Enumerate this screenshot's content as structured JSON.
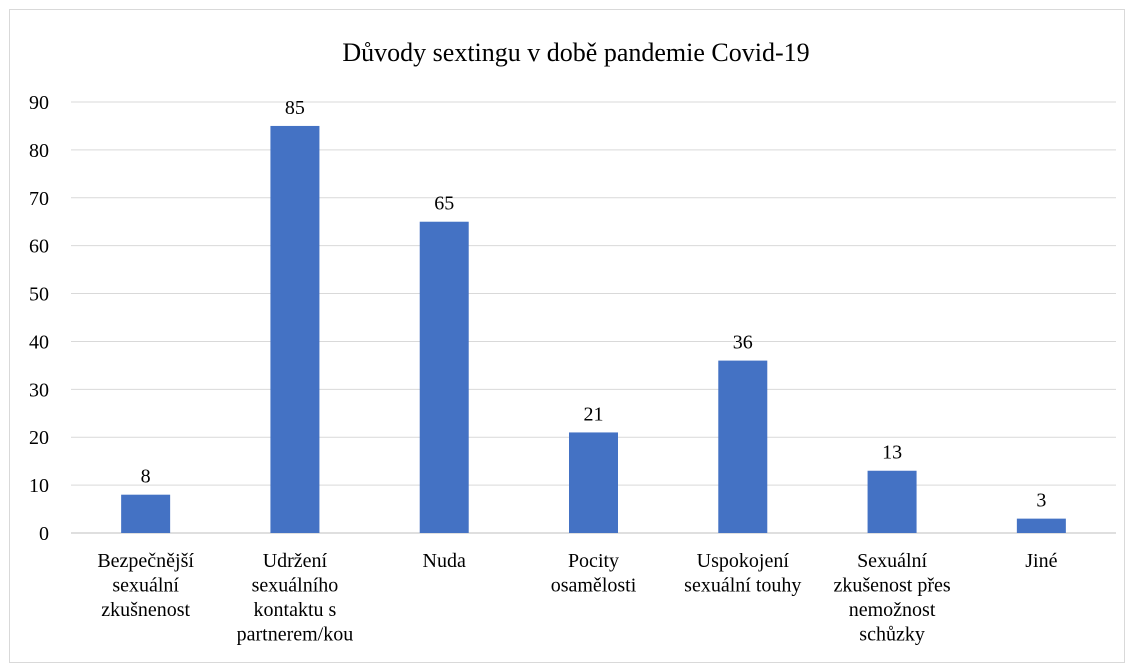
{
  "chart_data": {
    "type": "bar",
    "title": "Důvody sextingu v době pandemie Covid-19",
    "xlabel": "",
    "ylabel": "",
    "ylim": [
      0,
      90
    ],
    "yticks": [
      0,
      10,
      20,
      30,
      40,
      50,
      60,
      70,
      80,
      90
    ],
    "grid": true,
    "legend": "none",
    "bar_color": "#4472c4",
    "categories": [
      [
        "Bezpečnější",
        "sexuální",
        "zkušnenost"
      ],
      [
        "Udržení",
        "sexuálního",
        "kontaktu s",
        "partnerem/kou"
      ],
      [
        "Nuda"
      ],
      [
        "Pocity",
        "osamělosti"
      ],
      [
        "Uspokojení",
        "sexuální touhy"
      ],
      [
        "Sexuální",
        "zkušenost přes",
        "nemožnost",
        "schůzky"
      ],
      [
        "Jiné"
      ]
    ],
    "values": [
      8,
      85,
      65,
      21,
      36,
      13,
      3
    ]
  }
}
